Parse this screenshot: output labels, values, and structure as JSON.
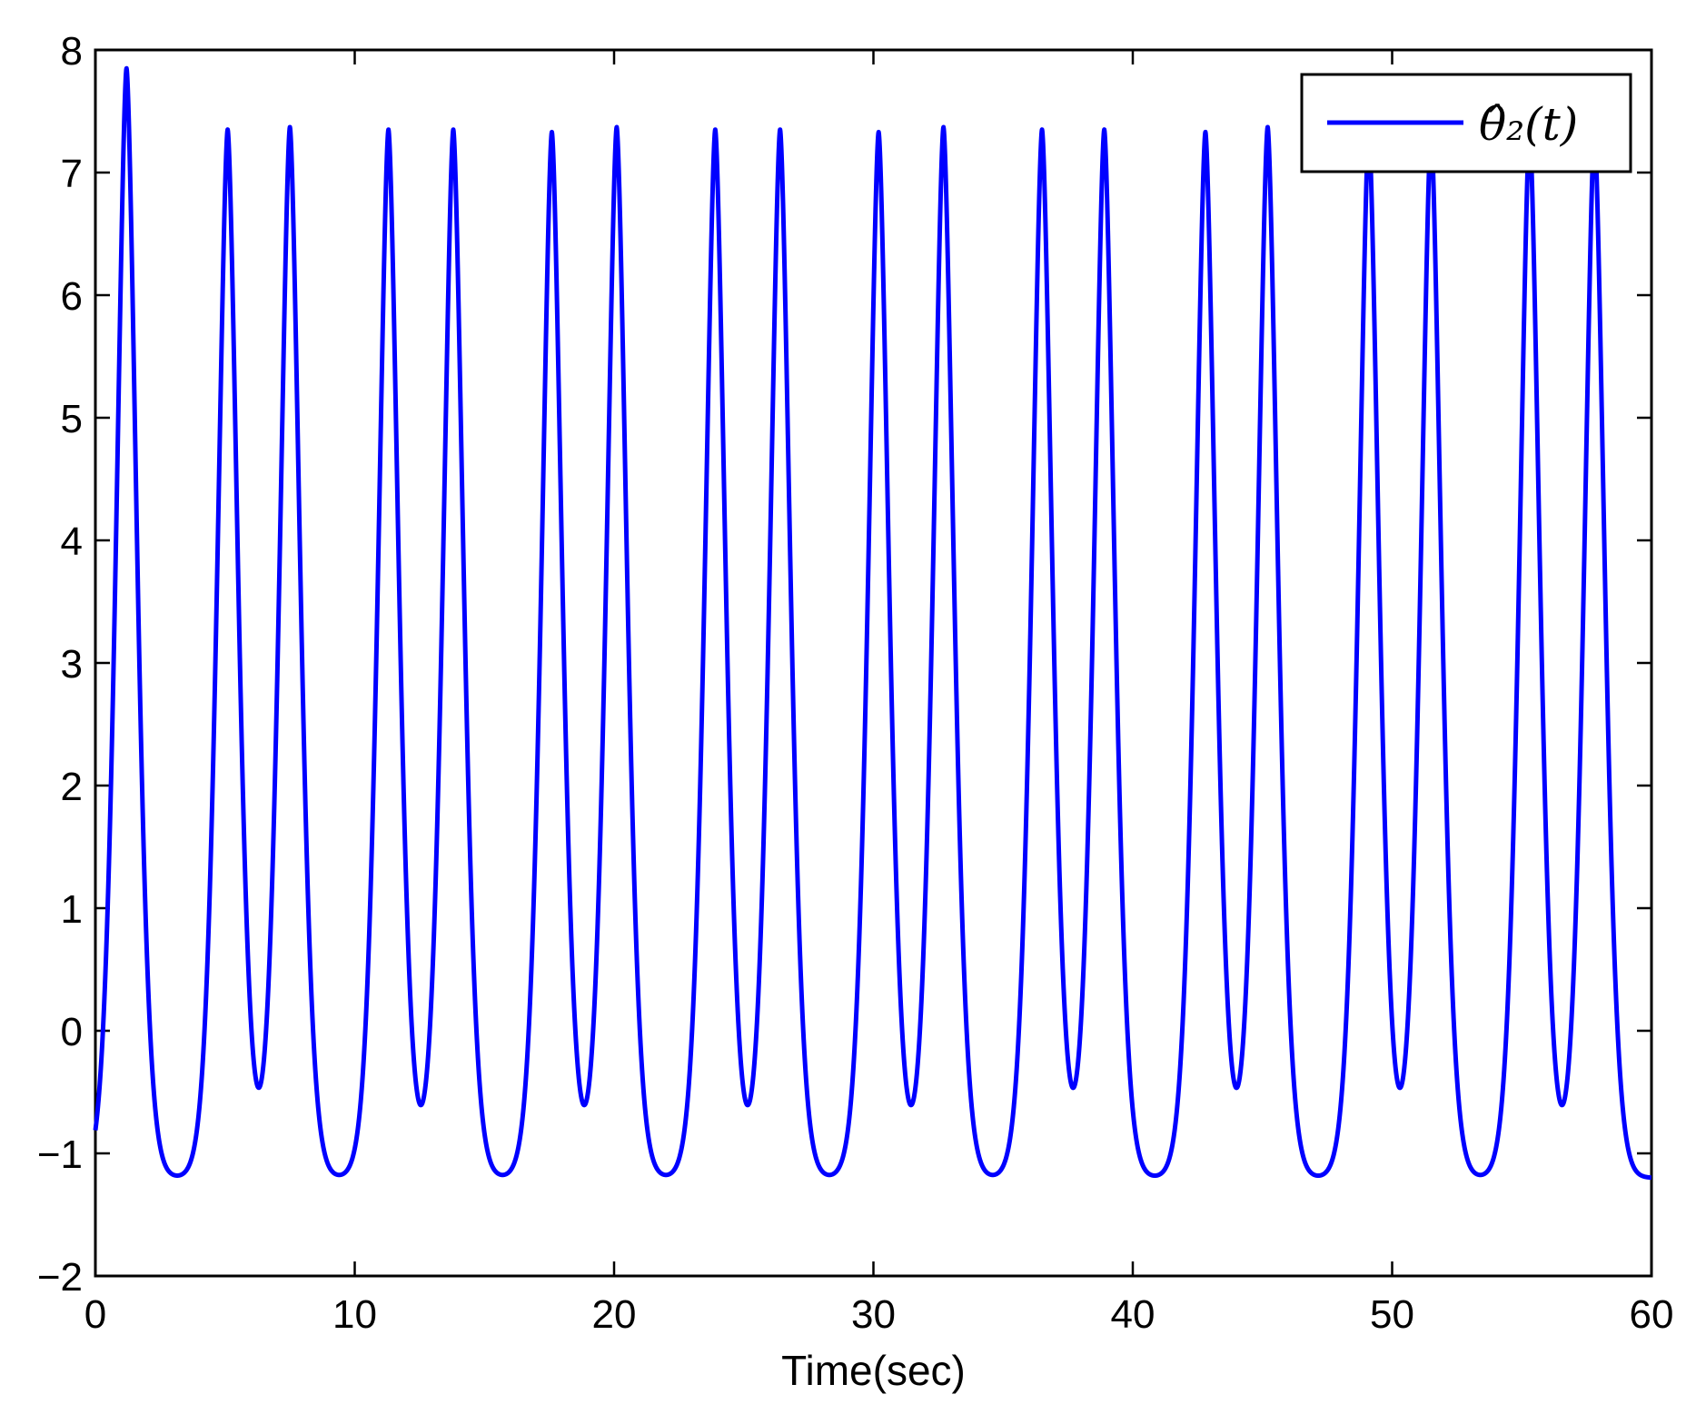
{
  "chart_data": {
    "type": "line",
    "xlabel": "Time(sec)",
    "ylabel": "",
    "xlim": [
      0,
      60
    ],
    "ylim": [
      -2,
      8
    ],
    "x_ticks": [
      "0",
      "10",
      "20",
      "30",
      "40",
      "50",
      "60"
    ],
    "y_ticks": [
      "−2",
      "−1",
      "0",
      "1",
      "2",
      "3",
      "4",
      "5",
      "6",
      "7",
      "8"
    ],
    "grid": false,
    "legend": {
      "position": "top-right",
      "entries": [
        "θ̂₂(t)"
      ]
    },
    "series": [
      {
        "name": "θ̂₂(t)",
        "color": "#0000ff",
        "baseline": -1.2,
        "peak_times": [
          1.2,
          5.1,
          7.5,
          11.3,
          13.8,
          17.6,
          20.1,
          23.9,
          26.4,
          30.2,
          32.7,
          36.5,
          38.9,
          42.8,
          45.2,
          49.1,
          51.5,
          55.3,
          57.8
        ],
        "peak_values": [
          7.85,
          7.35,
          7.37,
          7.35,
          7.35,
          7.33,
          7.37,
          7.35,
          7.35,
          7.33,
          7.37,
          7.35,
          7.35,
          7.33,
          7.37,
          7.35,
          7.35,
          7.35,
          7.35
        ]
      }
    ]
  }
}
